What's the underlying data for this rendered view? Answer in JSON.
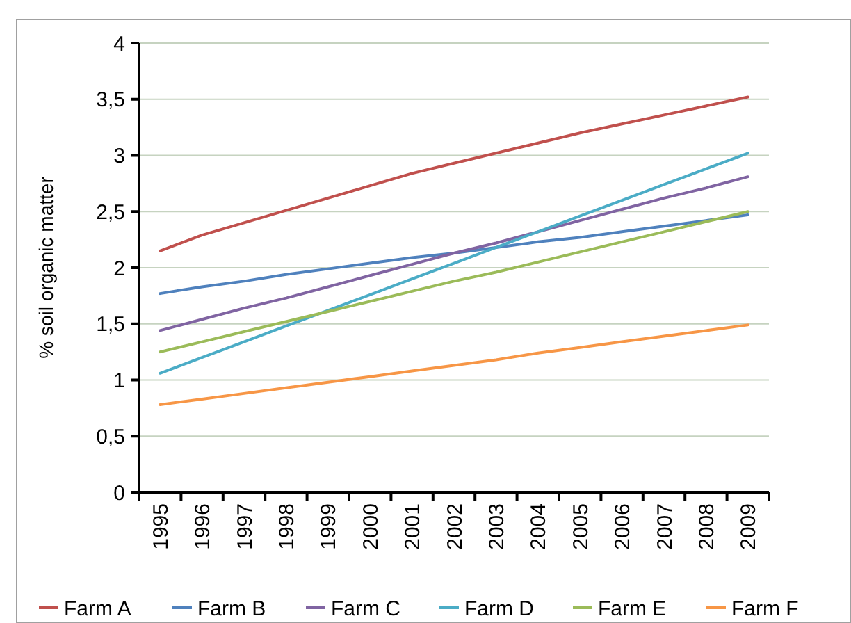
{
  "chart_data": {
    "type": "line",
    "ylabel": "% soil organic matter",
    "categories": [
      "1995",
      "1996",
      "1997",
      "1998",
      "1999",
      "2000",
      "2001",
      "2002",
      "2003",
      "2004",
      "2005",
      "2006",
      "2007",
      "2008",
      "2009"
    ],
    "ylim": [
      0,
      4
    ],
    "yticks": [
      0,
      {
        "value": 0.5,
        "label": "0,5"
      },
      1,
      {
        "value": 1.5,
        "label": "1,5"
      },
      2,
      {
        "value": 2.5,
        "label": "2,5"
      },
      3,
      {
        "value": 3.5,
        "label": "3,5"
      },
      4
    ],
    "grid": "y",
    "legend": "bottom",
    "marker": "none",
    "line_style": "solid",
    "series": [
      {
        "name": "Farm A",
        "color": "#c0504d",
        "values": [
          2.15,
          2.29,
          2.4,
          2.51,
          2.62,
          2.73,
          2.84,
          2.93,
          3.02,
          3.11,
          3.2,
          3.28,
          3.36,
          3.44,
          3.52
        ]
      },
      {
        "name": "Farm B",
        "color": "#4f81bd",
        "values": [
          1.77,
          1.83,
          1.88,
          1.94,
          1.99,
          2.04,
          2.09,
          2.13,
          2.18,
          2.23,
          2.27,
          2.32,
          2.37,
          2.42,
          2.47
        ]
      },
      {
        "name": "Farm C",
        "color": "#8064a2",
        "values": [
          1.44,
          1.54,
          1.64,
          1.73,
          1.83,
          1.93,
          2.03,
          2.13,
          2.22,
          2.32,
          2.42,
          2.52,
          2.62,
          2.71,
          2.81
        ]
      },
      {
        "name": "Farm D",
        "color": "#4bacc6",
        "values": [
          1.06,
          1.2,
          1.34,
          1.48,
          1.62,
          1.76,
          1.9,
          2.04,
          2.18,
          2.32,
          2.46,
          2.6,
          2.74,
          2.88,
          3.02
        ]
      },
      {
        "name": "Farm E",
        "color": "#9bbb59",
        "values": [
          1.25,
          1.34,
          1.43,
          1.52,
          1.61,
          1.7,
          1.79,
          1.88,
          1.96,
          2.05,
          2.14,
          2.23,
          2.32,
          2.41,
          2.5
        ]
      },
      {
        "name": "Farm F",
        "color": "#f79646",
        "values": [
          0.78,
          0.83,
          0.88,
          0.93,
          0.98,
          1.03,
          1.08,
          1.13,
          1.18,
          1.24,
          1.29,
          1.34,
          1.39,
          1.44,
          1.49
        ]
      }
    ]
  }
}
